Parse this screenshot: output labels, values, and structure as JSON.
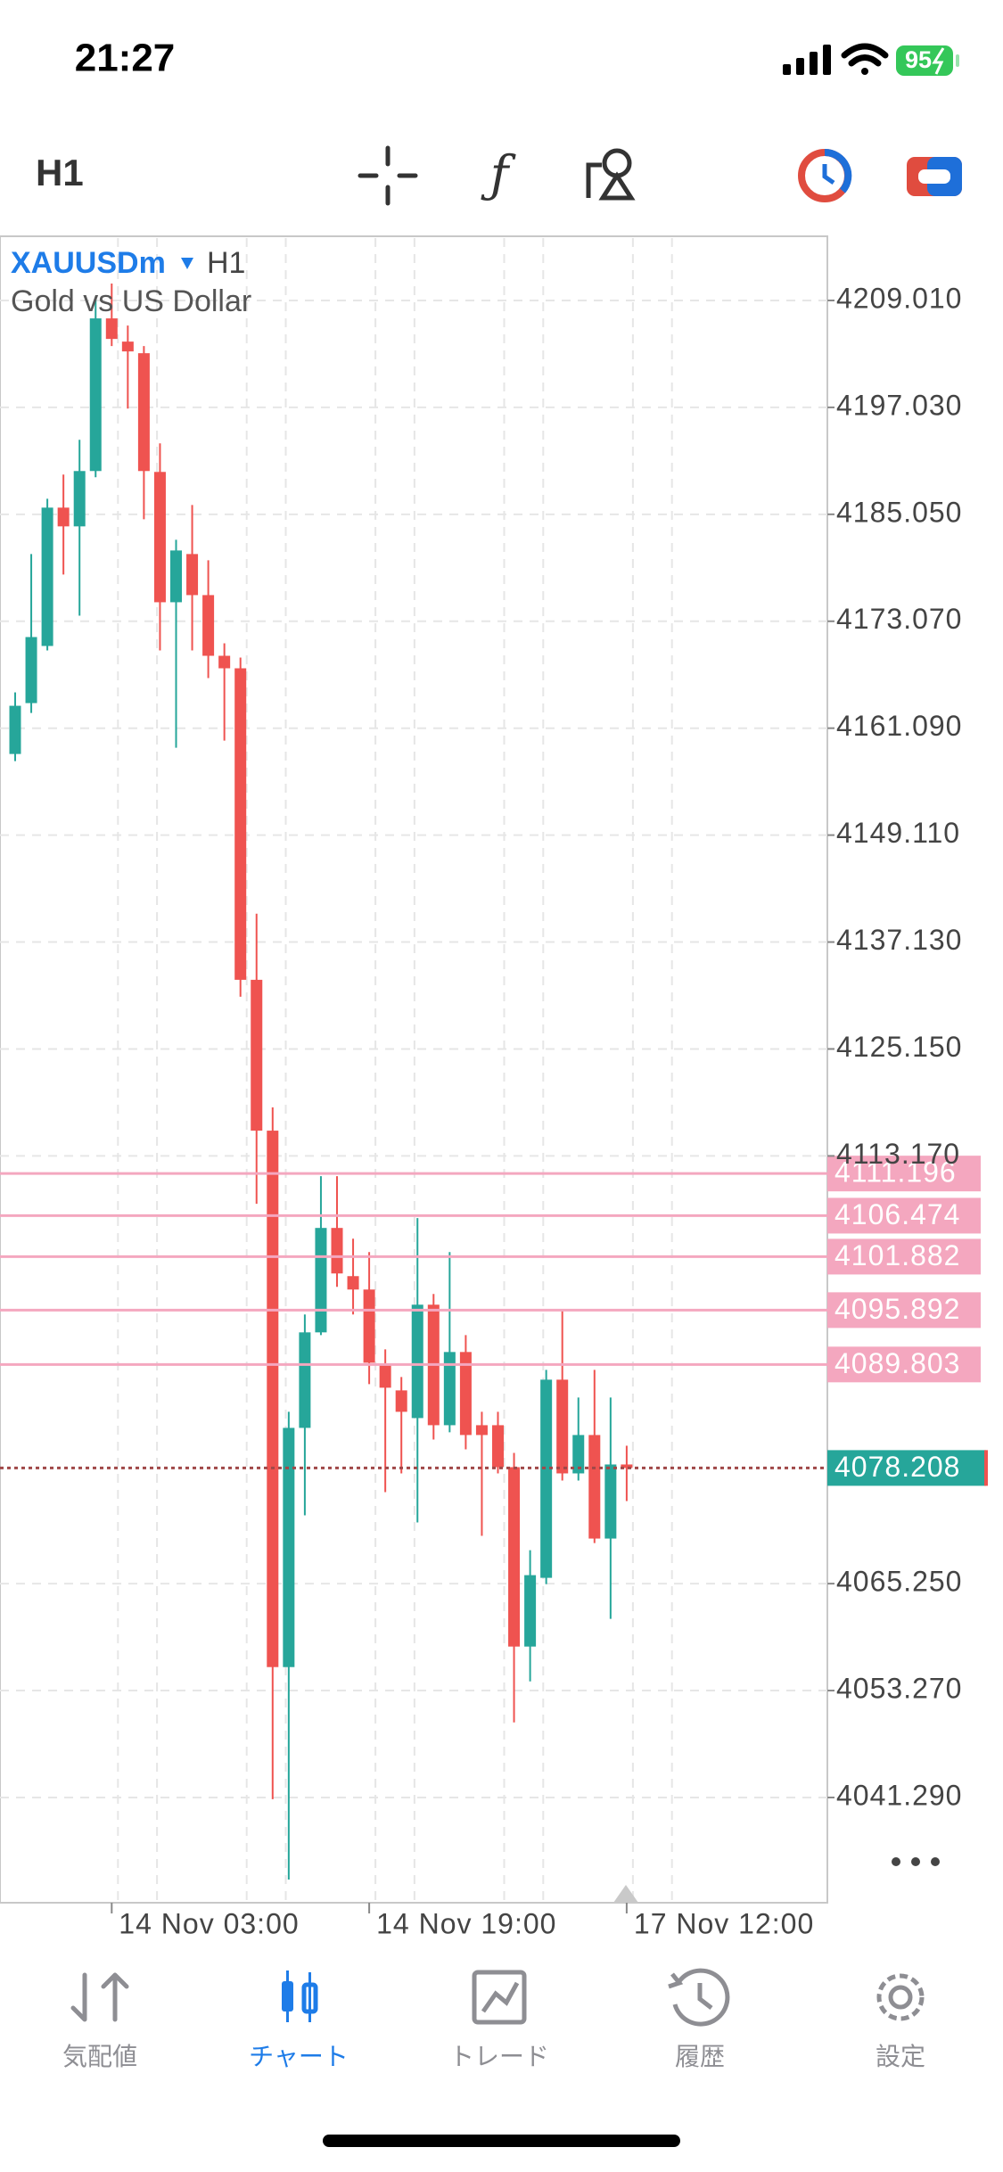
{
  "status_bar": {
    "time": "21:27",
    "battery": "95"
  },
  "toolbar": {
    "timeframe": "H1"
  },
  "chart_data": {
    "type": "candlestick",
    "symbol": "XAUUSDm",
    "timeframe": "H1",
    "subtitle": "Gold vs US Dollar",
    "categories": [
      null,
      null,
      null,
      null,
      null,
      null,
      "14 Nov 03:00",
      null,
      null,
      null,
      null,
      null,
      null,
      null,
      null,
      null,
      null,
      null,
      null,
      null,
      null,
      null,
      "14 Nov 19:00",
      null,
      null,
      null,
      null,
      null,
      null,
      null,
      null,
      null,
      null,
      null,
      null,
      null,
      null,
      null,
      "17 Nov 12:00"
    ],
    "open": [
      4158.2,
      4163.9,
      4170.3,
      4185.8,
      4183.7,
      4189.9,
      4207.0,
      4204.4,
      4203.1,
      4189.8,
      4175.2,
      4180.6,
      4176.0,
      4169.2,
      4167.8,
      4132.9,
      4116.0,
      4055.9,
      4082.7,
      4093.4,
      4105.1,
      4099.7,
      4098.2,
      4089.7,
      4086.9,
      4083.8,
      4096.5,
      4083.0,
      4091.2,
      4083.0,
      4083.0,
      4078.3,
      4058.2,
      4065.9,
      4088.1,
      4077.6,
      4081.9,
      4070.3,
      4078.6
    ],
    "high": [
      4165.1,
      4180.6,
      4186.8,
      4189.5,
      4193.4,
      4209.3,
      4210.9,
      4206.2,
      4203.9,
      4193.0,
      4182.2,
      4186.1,
      4179.9,
      4170.6,
      4169.0,
      4140.3,
      4118.6,
      4084.5,
      4095.4,
      4110.9,
      4110.9,
      4103.9,
      4102.4,
      4091.5,
      4088.4,
      4106.2,
      4097.7,
      4102.4,
      4093.1,
      4084.5,
      4084.5,
      4079.9,
      4069.0,
      4089.2,
      4095.9,
      4086.1,
      4089.2,
      4086.1,
      4080.7
    ],
    "low": [
      4157.4,
      4162.8,
      4169.8,
      4178.3,
      4173.7,
      4189.2,
      4203.9,
      4196.9,
      4184.5,
      4169.8,
      4158.9,
      4169.8,
      4166.7,
      4159.7,
      4131.0,
      4107.8,
      4041.1,
      4032.1,
      4072.9,
      4093.1,
      4098.5,
      4095.4,
      4087.6,
      4075.5,
      4077.6,
      4072.1,
      4081.4,
      4082.2,
      4080.3,
      4070.6,
      4077.6,
      4049.7,
      4054.3,
      4065.2,
      4076.8,
      4076.8,
      4069.8,
      4061.3,
      4074.5
    ],
    "close": [
      4163.6,
      4171.3,
      4185.8,
      4183.7,
      4189.9,
      4207.0,
      4204.7,
      4203.3,
      4189.9,
      4175.2,
      4181.0,
      4176.0,
      4169.2,
      4167.8,
      4132.9,
      4116.0,
      4055.9,
      4082.7,
      4093.4,
      4105.1,
      4100.0,
      4098.2,
      4090.0,
      4087.2,
      4084.5,
      4096.5,
      4083.0,
      4091.2,
      4081.9,
      4081.9,
      4078.3,
      4058.2,
      4066.2,
      4088.1,
      4077.6,
      4081.9,
      4070.3,
      4078.6,
      4078.208
    ],
    "up_color": "#26a69a",
    "down_color": "#ef5350",
    "ylim": [
      4029.5,
      4216.0
    ],
    "yticks": [
      {
        "value": 4209.01,
        "label": "4209.010"
      },
      {
        "value": 4197.03,
        "label": "4197.030"
      },
      {
        "value": 4185.05,
        "label": "4185.050"
      },
      {
        "value": 4173.07,
        "label": "4173.070"
      },
      {
        "value": 4161.09,
        "label": "4161.090"
      },
      {
        "value": 4149.11,
        "label": "4149.110"
      },
      {
        "value": 4137.13,
        "label": "4137.130"
      },
      {
        "value": 4125.15,
        "label": "4125.150"
      },
      {
        "value": 4113.17,
        "label": "4113.170"
      },
      {
        "value": 4065.25,
        "label": "4065.250"
      },
      {
        "value": 4053.27,
        "label": "4053.270"
      },
      {
        "value": 4041.29,
        "label": "4041.290"
      }
    ],
    "levels": [
      4111.196,
      4106.474,
      4101.882,
      4095.892,
      4089.803
    ],
    "level_color": "#f4a7bf",
    "current_price": 4078.208,
    "current_color": "#26a69a",
    "grid": true
  },
  "tab_bar": {
    "items": [
      "気配値",
      "チャート",
      "トレード",
      "履歴",
      "設定"
    ],
    "active": 1
  }
}
